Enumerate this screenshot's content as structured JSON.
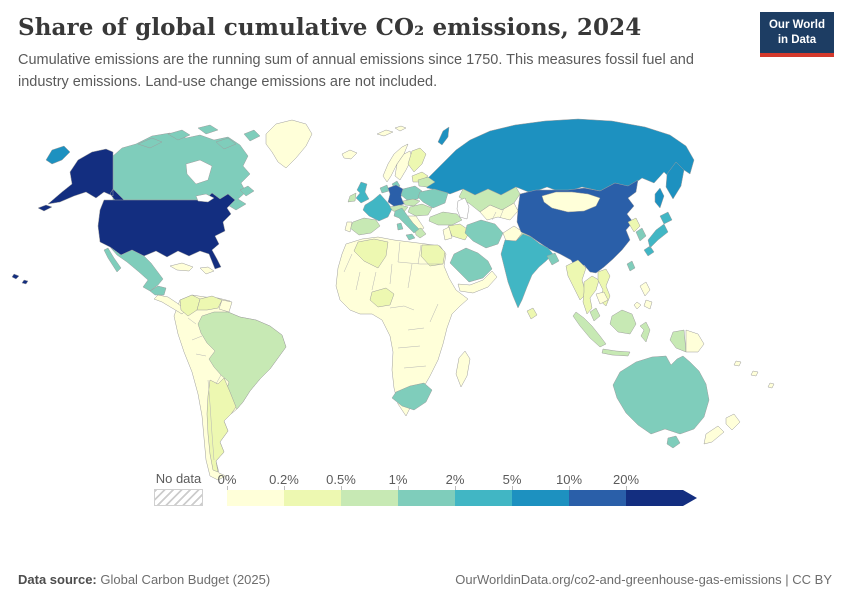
{
  "header": {
    "title": "Share of global cumulative CO₂ emissions, 2024",
    "subtitle": "Cumulative emissions are the running sum of annual emissions since 1750. This measures fossil fuel and industry emissions. Land-use change emissions are not included.",
    "logo": {
      "line1": "Our World",
      "line2": "in Data",
      "bg": "#1d3d63",
      "accent": "#d4392c"
    }
  },
  "chart_data": {
    "type": "heatmap",
    "variant": "choropleth-world-map",
    "title": "Share of global cumulative CO₂ emissions, 2024",
    "unit": "%",
    "year": "2024",
    "legend_position": "bottom",
    "no_data_label": "No data",
    "bins": [
      {
        "tick": "0%",
        "color": "#ffffd9"
      },
      {
        "tick": "0.2%",
        "color": "#edf8b1"
      },
      {
        "tick": "0.5%",
        "color": "#c7e9b4"
      },
      {
        "tick": "1%",
        "color": "#7fcdbb"
      },
      {
        "tick": "2%",
        "color": "#41b6c4"
      },
      {
        "tick": "5%",
        "color": "#1d91c0"
      },
      {
        "tick": "10%",
        "color": "#2a5fa9"
      },
      {
        "tick": "20%",
        "color": "#132e80"
      }
    ],
    "regions": {
      "greenland": 0,
      "iceland": 0,
      "svalbard": 0,
      "novaya-zemlya": 5,
      "canada": 3,
      "canada-arctic": 3,
      "newfoundland": 3,
      "alaska": 7,
      "usa": 7,
      "hawaii": 7,
      "chukotka": 5,
      "russia": 5,
      "kamchatka": 5,
      "sakhalin": 5,
      "mexico": 3,
      "central-america": 0,
      "cuba": 0,
      "hispaniola": 0,
      "south-america": 0,
      "colombia": 1,
      "venezuela": 1,
      "guyanas": 0,
      "brazil": 2,
      "argentina": 1,
      "uk": 4,
      "ireland": 2,
      "norway": 0,
      "sweden": 0,
      "finland": 1,
      "baltics": 1,
      "denmark": 3,
      "netherlands": 3,
      "germany": 6,
      "france": 4,
      "spain": 2,
      "portugal": 0,
      "italy": 3,
      "sicily": 3,
      "sardinia": 3,
      "switzerland-austria": 2,
      "czech-slovakia": 2,
      "poland": 3,
      "hungary-romania": 2,
      "balkans": 0,
      "greece": 2,
      "belarus": 2,
      "ukraine": 3,
      "kazakhstan": 2,
      "central-asia": 0,
      "turkey": 2,
      "syria-iraq": 1,
      "israel-jordan": 0,
      "iran": 3,
      "afghanistan": 0,
      "pakistan": 2,
      "saudi-arabia": 3,
      "yemen-oman": 0,
      "africa": 0,
      "algeria": 1,
      "egypt": 1,
      "nigeria": 1,
      "south-africa": 3,
      "madagascar": 0,
      "india": 4,
      "sri-lanka": 1,
      "bangladesh": 3,
      "myanmar": 1,
      "thailand": 1,
      "vietnam": 1,
      "cambodia": 0,
      "malaysia": 2,
      "indonesia": 2,
      "philippines": 0,
      "papua-new-guinea": 0,
      "china": 6,
      "mongolia": 0,
      "north-korea": 1,
      "south-korea": 3,
      "taiwan": 3,
      "japan": 4,
      "australia": 3,
      "tasmania": 3,
      "new-zealand": 0,
      "pacific-islands": 0
    }
  },
  "footer": {
    "source_label": "Data source:",
    "source_text": " Global Carbon Budget (2025)",
    "right_text": "OurWorldinData.org/co2-and-greenhouse-gas-emissions | CC BY"
  }
}
